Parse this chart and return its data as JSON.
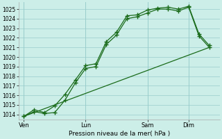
{
  "bg_color": "#cceee8",
  "grid_color": "#99cccc",
  "line_color": "#1a6b1a",
  "xlabel": "Pression niveau de la mer( hPa )",
  "ylim": [
    1013.5,
    1025.7
  ],
  "yticks": [
    1014,
    1015,
    1016,
    1017,
    1018,
    1019,
    1020,
    1021,
    1022,
    1023,
    1024,
    1025
  ],
  "xtick_labels": [
    "Ven",
    "Lun",
    "Sam",
    "Dim"
  ],
  "xtick_positions": [
    0,
    24,
    48,
    64
  ],
  "xlim": [
    -2,
    76
  ],
  "series1_x": [
    0,
    4,
    8,
    12,
    16,
    20,
    24,
    28,
    32,
    36,
    40,
    44,
    48,
    52,
    56,
    60,
    64,
    68,
    72
  ],
  "series1_y": [
    1013.8,
    1014.3,
    1014.1,
    1014.2,
    1015.5,
    1017.3,
    1018.8,
    1019.0,
    1021.3,
    1022.3,
    1024.0,
    1024.2,
    1024.6,
    1025.0,
    1025.0,
    1024.8,
    1025.2,
    1022.2,
    1021.0
  ],
  "series2_x": [
    0,
    4,
    8,
    12,
    16,
    20,
    24,
    28,
    32,
    36,
    40,
    44,
    48,
    52,
    56,
    60,
    64,
    68,
    72
  ],
  "series2_y": [
    1013.8,
    1014.5,
    1014.2,
    1014.9,
    1016.1,
    1017.6,
    1019.1,
    1019.3,
    1021.6,
    1022.6,
    1024.3,
    1024.4,
    1024.9,
    1025.1,
    1025.2,
    1025.0,
    1025.3,
    1022.4,
    1021.2
  ],
  "series3_x": [
    0,
    72
  ],
  "series3_y": [
    1013.8,
    1021.0
  ],
  "vline_positions": [
    0,
    24,
    48,
    64
  ]
}
